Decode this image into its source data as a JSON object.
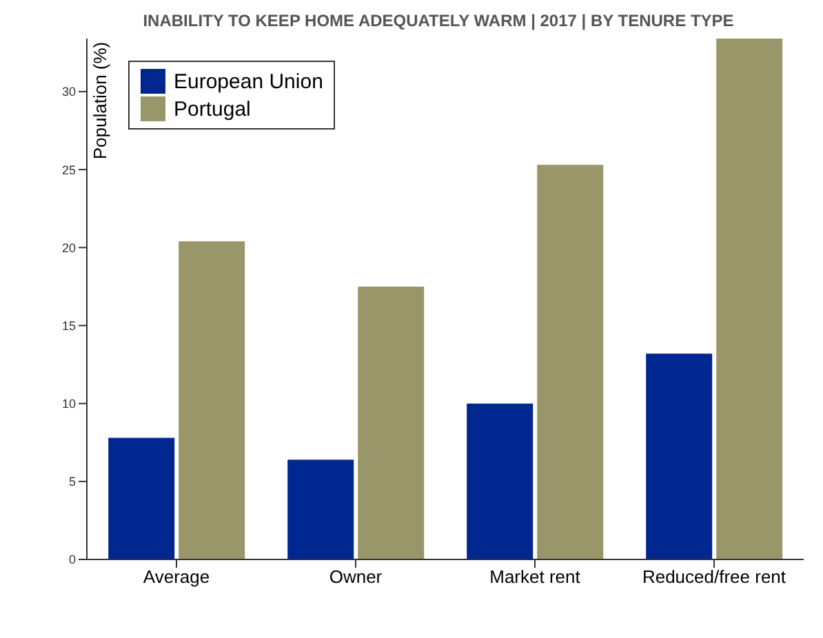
{
  "chart_data": {
    "type": "bar",
    "title": "INABILITY TO KEEP HOME ADEQUATELY WARM | 2017 | BY TENURE TYPE",
    "ylabel": "Population (%)",
    "categories": [
      "Average",
      "Owner",
      "Market rent",
      "Reduced/free rent"
    ],
    "series": [
      {
        "name": "European Union",
        "color": "#00268f",
        "values": [
          7.8,
          6.4,
          10.0,
          13.2
        ]
      },
      {
        "name": "Portugal",
        "color": "#999669",
        "values": [
          20.4,
          17.5,
          25.3,
          33.4
        ]
      }
    ],
    "ylim": [
      0,
      33.4
    ],
    "yticks": [
      0,
      5,
      10,
      15,
      20,
      25,
      30
    ],
    "grid": false,
    "legend": "top left"
  }
}
